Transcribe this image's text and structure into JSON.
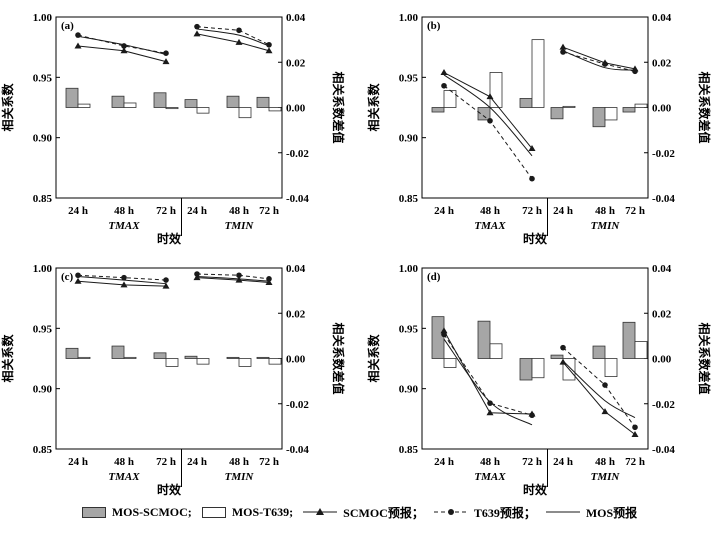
{
  "colors": {
    "diff_scmoc_fill": "#a6a6a6",
    "diff_t639_fill": "#ffffff",
    "line": "#1a1a1a"
  },
  "legend": {
    "items": [
      {
        "label": "MOS-SCMOC;",
        "kind": "bar-gray"
      },
      {
        "label": "MOS-T639;",
        "kind": "bar-white"
      },
      {
        "label": "SCMOC预报；",
        "kind": "line-triangle"
      },
      {
        "label": "T639预报；",
        "kind": "line-circle-dashed"
      },
      {
        "label": "MOS预报",
        "kind": "line-plain"
      }
    ]
  },
  "chart_data": [
    {
      "type": "bar",
      "panel_label": "(a)",
      "xlabel": "时效",
      "ylabel": "相关系数",
      "ylabel_right": "相关系数差值",
      "ylim": [
        0.85,
        1.0
      ],
      "ylim_right": [
        -0.04,
        0.04
      ],
      "yticks": [
        "0.85",
        "0.90",
        "0.95",
        "1.00"
      ],
      "yticks_right": [
        "-0.04",
        "-0.02",
        "0.00",
        "0.02",
        "0.04"
      ],
      "groups": [
        "TMAX",
        "TMIN"
      ],
      "categories": [
        "24 h",
        "48 h",
        "72 h",
        "24 h",
        "48 h",
        "72 h"
      ],
      "series": [
        {
          "name": "MOS-SCMOC",
          "axis": "right",
          "values": [
            0.0085,
            0.005,
            0.0065,
            0.0035,
            0.005,
            0.0045
          ]
        },
        {
          "name": "MOS-T639",
          "axis": "right",
          "values": [
            0.0015,
            0.002,
            -0.0005,
            -0.0025,
            -0.0045,
            -0.0015
          ]
        },
        {
          "name": "SCMOC预报",
          "axis": "left",
          "values": [
            0.976,
            0.972,
            0.963,
            0.986,
            0.979,
            0.972
          ]
        },
        {
          "name": "T639预报",
          "axis": "left",
          "values": [
            0.985,
            0.976,
            0.97,
            0.992,
            0.989,
            0.977
          ]
        },
        {
          "name": "MOS预报",
          "axis": "left",
          "values": [
            0.984,
            0.977,
            0.969,
            0.99,
            0.985,
            0.976
          ]
        }
      ]
    },
    {
      "type": "bar",
      "panel_label": "(b)",
      "xlabel": "时效",
      "ylabel": "相关系数",
      "ylabel_right": "相关系数差值",
      "ylim": [
        0.85,
        1.0
      ],
      "ylim_right": [
        -0.04,
        0.04
      ],
      "yticks": [
        "0.85",
        "0.90",
        "0.95",
        "1.00"
      ],
      "yticks_right": [
        "-0.04",
        "-0.02",
        "0.00",
        "0.02",
        "0.04"
      ],
      "groups": [
        "TMAX",
        "TMIN"
      ],
      "categories": [
        "24 h",
        "48 h",
        "72 h",
        "24 h",
        "48 h",
        "72 h"
      ],
      "series": [
        {
          "name": "MOS-SCMOC",
          "axis": "right",
          "values": [
            -0.002,
            -0.0055,
            0.004,
            -0.005,
            -0.0085,
            -0.002
          ]
        },
        {
          "name": "MOS-T639",
          "axis": "right",
          "values": [
            0.0075,
            0.0155,
            0.03,
            0.0005,
            -0.0055,
            0.0015
          ]
        },
        {
          "name": "SCMOC预报",
          "axis": "left",
          "values": [
            0.954,
            0.934,
            0.891,
            0.975,
            0.962,
            0.957
          ]
        },
        {
          "name": "T639预报",
          "axis": "left",
          "values": [
            0.943,
            0.914,
            0.866,
            0.971,
            0.961,
            0.955
          ]
        },
        {
          "name": "MOS预报",
          "axis": "left",
          "values": [
            0.952,
            0.925,
            0.885,
            0.972,
            0.958,
            0.956
          ]
        }
      ]
    },
    {
      "type": "bar",
      "panel_label": "(c)",
      "xlabel": "时效",
      "ylabel": "相关系数",
      "ylabel_right": "相关系数差值",
      "ylim": [
        0.85,
        1.0
      ],
      "ylim_right": [
        -0.04,
        0.04
      ],
      "yticks": [
        "0.85",
        "0.90",
        "0.95",
        "1.00"
      ],
      "yticks_right": [
        "-0.04",
        "-0.02",
        "0.00",
        "0.02",
        "0.04"
      ],
      "groups": [
        "TMAX",
        "TMIN"
      ],
      "categories": [
        "24 h",
        "48 h",
        "72 h",
        "24 h",
        "48 h",
        "72 h"
      ],
      "series": [
        {
          "name": "MOS-SCMOC",
          "axis": "right",
          "values": [
            0.0045,
            0.0055,
            0.0025,
            0.001,
            0.0005,
            0.0005
          ]
        },
        {
          "name": "MOS-T639",
          "axis": "right",
          "values": [
            0.0005,
            0.0005,
            -0.0035,
            -0.0025,
            -0.0035,
            -0.0025
          ]
        },
        {
          "name": "SCMOC预报",
          "axis": "left",
          "values": [
            0.989,
            0.986,
            0.985,
            0.992,
            0.99,
            0.988
          ]
        },
        {
          "name": "T639预报",
          "axis": "left",
          "values": [
            0.994,
            0.992,
            0.99,
            0.995,
            0.994,
            0.991
          ]
        },
        {
          "name": "MOS预报",
          "axis": "left",
          "values": [
            0.993,
            0.99,
            0.987,
            0.993,
            0.991,
            0.989
          ]
        }
      ]
    },
    {
      "type": "bar",
      "panel_label": "(d)",
      "xlabel": "时效",
      "ylabel": "相关系数",
      "ylabel_right": "相关系数差值",
      "ylim": [
        0.85,
        1.0
      ],
      "ylim_right": [
        -0.04,
        0.04
      ],
      "yticks": [
        "0.85",
        "0.90",
        "0.95",
        "1.00"
      ],
      "yticks_right": [
        "-0.04",
        "-0.02",
        "0.00",
        "0.02",
        "0.04"
      ],
      "groups": [
        "TMAX",
        "TMIN"
      ],
      "categories": [
        "24 h",
        "48 h",
        "72 h",
        "24 h",
        "48 h",
        "72 h"
      ],
      "series": [
        {
          "name": "MOS-SCMOC",
          "axis": "right",
          "values": [
            0.0185,
            0.0165,
            -0.0095,
            0.0015,
            0.0055,
            0.016
          ]
        },
        {
          "name": "MOS-T639",
          "axis": "right",
          "values": [
            -0.004,
            0.0065,
            -0.0085,
            -0.0095,
            -0.008,
            0.0075
          ]
        },
        {
          "name": "SCMOC预报",
          "axis": "left",
          "values": [
            0.948,
            0.88,
            0.879,
            0.922,
            0.881,
            0.862
          ]
        },
        {
          "name": "T639预报",
          "axis": "left",
          "values": [
            0.945,
            0.888,
            0.878,
            0.934,
            0.903,
            0.868
          ]
        },
        {
          "name": "MOS预报",
          "axis": "left",
          "values": [
            0.941,
            0.889,
            0.87,
            0.923,
            0.89,
            0.876
          ]
        }
      ]
    }
  ]
}
